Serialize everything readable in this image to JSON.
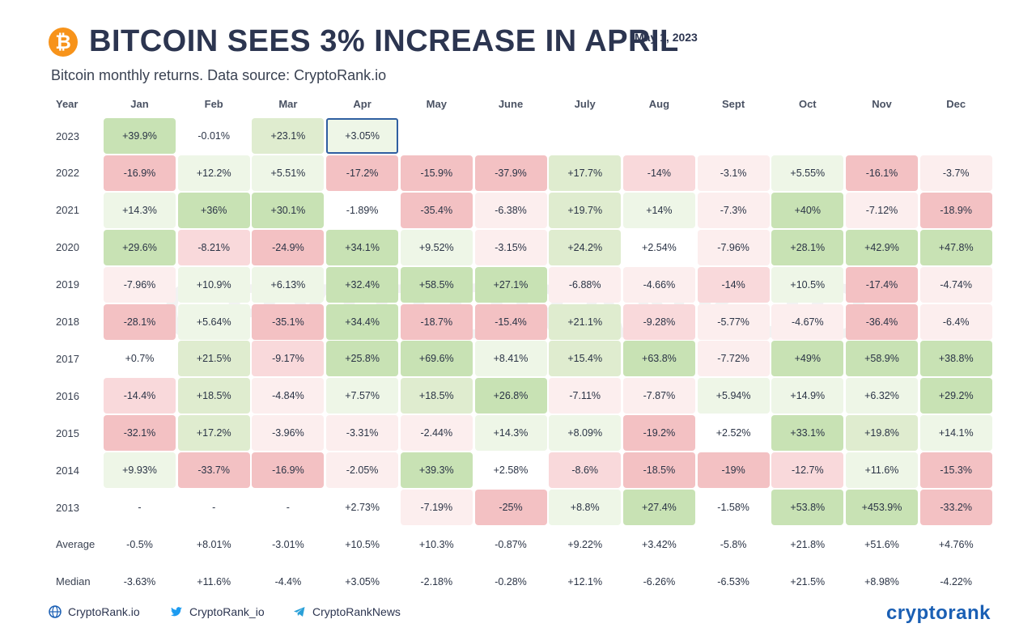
{
  "header": {
    "title": "BITCOIN SEES 3% INCREASE IN APRIL",
    "date": "May 1, 2023",
    "subtitle": "Bitcoin monthly returns. Data source: CryptoRank.io"
  },
  "watermark": "CRYPTORANK.IO",
  "chart_data": {
    "type": "heatmap",
    "title": "BITCOIN SEES 3% INCREASE IN APRIL",
    "corner_label": "Year",
    "columns": [
      "Jan",
      "Feb",
      "Mar",
      "Apr",
      "May",
      "June",
      "July",
      "Aug",
      "Sept",
      "Oct",
      "Nov",
      "Dec"
    ],
    "rows": [
      {
        "label": "2023",
        "values": [
          "+39.9%",
          "-0.01%",
          "+23.1%",
          "+3.05%",
          "",
          "",
          "",
          "",
          "",
          "",
          "",
          ""
        ]
      },
      {
        "label": "2022",
        "values": [
          "-16.9%",
          "+12.2%",
          "+5.51%",
          "-17.2%",
          "-15.9%",
          "-37.9%",
          "+17.7%",
          "-14%",
          "-3.1%",
          "+5.55%",
          "-16.1%",
          "-3.7%"
        ]
      },
      {
        "label": "2021",
        "values": [
          "+14.3%",
          "+36%",
          "+30.1%",
          "-1.89%",
          "-35.4%",
          "-6.38%",
          "+19.7%",
          "+14%",
          "-7.3%",
          "+40%",
          "-7.12%",
          "-18.9%"
        ]
      },
      {
        "label": "2020",
        "values": [
          "+29.6%",
          "-8.21%",
          "-24.9%",
          "+34.1%",
          "+9.52%",
          "-3.15%",
          "+24.2%",
          "+2.54%",
          "-7.96%",
          "+28.1%",
          "+42.9%",
          "+47.8%"
        ]
      },
      {
        "label": "2019",
        "values": [
          "-7.96%",
          "+10.9%",
          "+6.13%",
          "+32.4%",
          "+58.5%",
          "+27.1%",
          "-6.88%",
          "-4.66%",
          "-14%",
          "+10.5%",
          "-17.4%",
          "-4.74%"
        ]
      },
      {
        "label": "2018",
        "values": [
          "-28.1%",
          "+5.64%",
          "-35.1%",
          "+34.4%",
          "-18.7%",
          "-15.4%",
          "+21.1%",
          "-9.28%",
          "-5.77%",
          "-4.67%",
          "-36.4%",
          "-6.4%"
        ]
      },
      {
        "label": "2017",
        "values": [
          "+0.7%",
          "+21.5%",
          "-9.17%",
          "+25.8%",
          "+69.6%",
          "+8.41%",
          "+15.4%",
          "+63.8%",
          "-7.72%",
          "+49%",
          "+58.9%",
          "+38.8%"
        ]
      },
      {
        "label": "2016",
        "values": [
          "-14.4%",
          "+18.5%",
          "-4.84%",
          "+7.57%",
          "+18.5%",
          "+26.8%",
          "-7.11%",
          "-7.87%",
          "+5.94%",
          "+14.9%",
          "+6.32%",
          "+29.2%"
        ]
      },
      {
        "label": "2015",
        "values": [
          "-32.1%",
          "+17.2%",
          "-3.96%",
          "-3.31%",
          "-2.44%",
          "+14.3%",
          "+8.09%",
          "-19.2%",
          "+2.52%",
          "+33.1%",
          "+19.8%",
          "+14.1%"
        ]
      },
      {
        "label": "2014",
        "values": [
          "+9.93%",
          "-33.7%",
          "-16.9%",
          "-2.05%",
          "+39.3%",
          "+2.58%",
          "-8.6%",
          "-18.5%",
          "-19%",
          "-12.7%",
          "+11.6%",
          "-15.3%"
        ]
      },
      {
        "label": "2013",
        "values": [
          "-",
          "-",
          "-",
          "+2.73%",
          "-7.19%",
          "-25%",
          "+8.8%",
          "+27.4%",
          "-1.58%",
          "+53.8%",
          "+453.9%",
          "-33.2%"
        ]
      }
    ],
    "summary_rows": [
      {
        "label": "Average",
        "values": [
          "-0.5%",
          "+8.01%",
          "-3.01%",
          "+10.5%",
          "+10.3%",
          "-0.87%",
          "+9.22%",
          "+3.42%",
          "-5.8%",
          "+21.8%",
          "+51.6%",
          "+4.76%"
        ]
      },
      {
        "label": "Median",
        "values": [
          "-3.63%",
          "+11.6%",
          "-4.4%",
          "+3.05%",
          "-2.18%",
          "-0.28%",
          "+12.1%",
          "-6.26%",
          "-6.53%",
          "+21.5%",
          "+8.98%",
          "-4.22%"
        ]
      }
    ],
    "highlight": {
      "row": "2023",
      "column": "Apr"
    },
    "colors": {
      "pos_light": "#eef6e7",
      "pos_mid": "#dfeccf",
      "pos_dark": "#c8e2b4",
      "neg_light": "#fceeee",
      "neg_mid": "#f9d9db",
      "neg_dark": "#f3c1c3",
      "highlight_border": "#2f5fa0"
    }
  },
  "footer": {
    "links": [
      {
        "icon": "globe-icon",
        "label": "CryptoRank.io"
      },
      {
        "icon": "twitter-icon",
        "label": "CryptoRank_io"
      },
      {
        "icon": "telegram-icon",
        "label": "CryptoRankNews"
      }
    ],
    "logo": "cryptorank"
  },
  "brand": {
    "bitcoin_color": "#f7931a",
    "logo_color": "#1a5fb4"
  }
}
